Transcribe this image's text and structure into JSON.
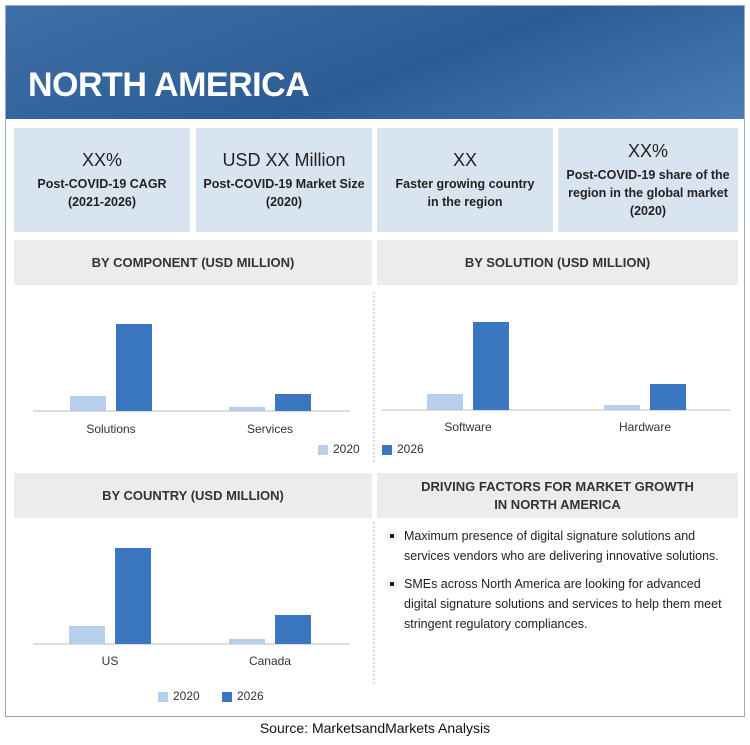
{
  "header": {
    "title": "NORTH AMERICA"
  },
  "kpis": [
    {
      "value": "XX%",
      "lines": [
        "Post-COVID-19 CAGR",
        "(2021-2026)"
      ]
    },
    {
      "value": "USD XX Million",
      "lines": [
        "Post-COVID-19 Market Size",
        "(2020)"
      ]
    },
    {
      "value": "XX",
      "lines": [
        "Faster growing country",
        "in the region"
      ]
    },
    {
      "value": "XX%",
      "lines": [
        "Post-COVID-19 share of the",
        "region in the global market",
        "(2020)"
      ]
    }
  ],
  "chart_data": [
    {
      "type": "bar",
      "title": "BY COMPONENT (USD MILLION)",
      "categories": [
        "Solutions",
        "Services"
      ],
      "series": [
        {
          "name": "2020",
          "color": "#b7cfea",
          "values": [
            15,
            4
          ]
        },
        {
          "name": "2026",
          "color": "#3a77c0",
          "values": [
            87,
            17
          ]
        }
      ],
      "ylim": [
        0,
        100
      ],
      "legend": true
    },
    {
      "type": "bar",
      "title": "BY  SOLUTION (USD MILLION)",
      "categories": [
        "Software",
        "Hardware"
      ],
      "series": [
        {
          "name": "2020",
          "color": "#b7cfea",
          "values": [
            16,
            5
          ]
        },
        {
          "name": "2026",
          "color": "#3a77c0",
          "values": [
            88,
            26
          ]
        }
      ],
      "ylim": [
        0,
        100
      ],
      "legend": false
    },
    {
      "type": "bar",
      "title": "BY COUNTRY (USD MILLION)",
      "categories": [
        "US",
        "Canada"
      ],
      "series": [
        {
          "name": "2020",
          "color": "#b7cfea",
          "values": [
            18,
            5
          ]
        },
        {
          "name": "2026",
          "color": "#3a77c0",
          "values": [
            96,
            29
          ]
        }
      ],
      "ylim": [
        0,
        100
      ],
      "legend": true
    }
  ],
  "driving_factors": {
    "title_lines": [
      "DRIVING FACTORS FOR MARKET GROWTH",
      "IN NORTH AMERICA"
    ],
    "items": [
      "Maximum presence of digital signature solutions and services vendors who are delivering innovative solutions.",
      "SMEs across North America are looking for  advanced digital signature solutions and services to help them meet  stringent regulatory compliances."
    ]
  },
  "source": "Source: MarketsandMarkets Analysis"
}
